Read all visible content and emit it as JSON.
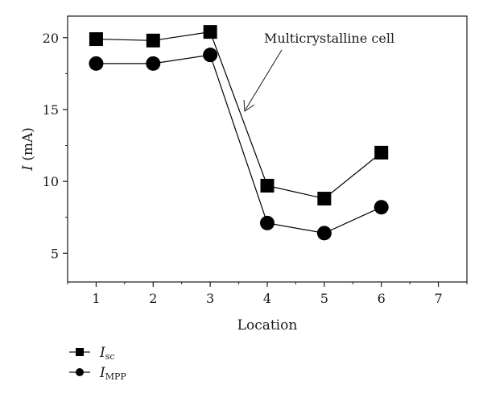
{
  "chart_data": {
    "type": "line",
    "xlabel": "Location",
    "ylabel_italic": "I",
    "ylabel_rest": " (mA)",
    "x": [
      1,
      2,
      3,
      4,
      5,
      6
    ],
    "xticks": [
      1,
      2,
      3,
      4,
      5,
      6,
      7
    ],
    "yticks": [
      5,
      10,
      15,
      20
    ],
    "xlim": [
      0.5,
      7.5
    ],
    "ylim": [
      3,
      21.5
    ],
    "grid": false,
    "legend_position": "bottom-left, below plot",
    "annotation": "Multicrystalline cell",
    "series": [
      {
        "name": "Isc",
        "legend_main": "I",
        "legend_sub": "sc",
        "marker": "square",
        "color": "#000000",
        "values": [
          19.9,
          19.8,
          20.4,
          9.7,
          8.8,
          12.0
        ]
      },
      {
        "name": "IMPP",
        "legend_main": "I",
        "legend_sub": "MPP",
        "marker": "circle",
        "color": "#000000",
        "values": [
          18.2,
          18.2,
          18.8,
          7.1,
          6.4,
          8.2
        ]
      }
    ]
  }
}
